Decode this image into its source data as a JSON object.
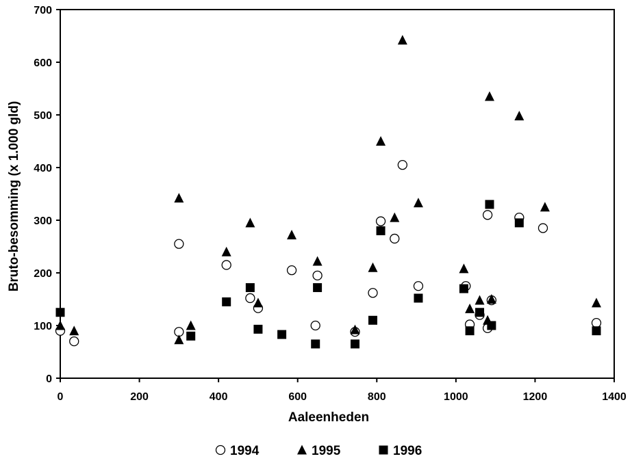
{
  "chart_data": {
    "type": "scatter",
    "title": "",
    "xlabel": "Aaleenheden",
    "ylabel": "Bruto-besomming (x 1.000 gld)",
    "xlim": [
      0,
      1400
    ],
    "ylim": [
      0,
      700
    ],
    "xticks": [
      "0",
      "200",
      "400",
      "600",
      "800",
      "1000",
      "1200",
      "1400"
    ],
    "yticks": [
      "0",
      "100",
      "200",
      "300",
      "400",
      "500",
      "600",
      "700"
    ],
    "grid": false,
    "legend_position": "bottom",
    "series": [
      {
        "name": "1994",
        "marker": "open-circle",
        "points": [
          [
            0,
            90
          ],
          [
            35,
            70
          ],
          [
            300,
            255
          ],
          [
            300,
            88
          ],
          [
            420,
            215
          ],
          [
            480,
            152
          ],
          [
            500,
            133
          ],
          [
            585,
            205
          ],
          [
            645,
            100
          ],
          [
            650,
            195
          ],
          [
            745,
            88
          ],
          [
            790,
            162
          ],
          [
            810,
            298
          ],
          [
            845,
            265
          ],
          [
            865,
            405
          ],
          [
            905,
            175
          ],
          [
            1025,
            175
          ],
          [
            1035,
            102
          ],
          [
            1060,
            120
          ],
          [
            1080,
            95
          ],
          [
            1080,
            310
          ],
          [
            1090,
            148
          ],
          [
            1160,
            305
          ],
          [
            1220,
            285
          ],
          [
            1355,
            105
          ]
        ]
      },
      {
        "name": "1995",
        "marker": "filled-triangle",
        "points": [
          [
            0,
            100
          ],
          [
            35,
            90
          ],
          [
            300,
            73
          ],
          [
            300,
            342
          ],
          [
            330,
            100
          ],
          [
            420,
            240
          ],
          [
            480,
            295
          ],
          [
            500,
            143
          ],
          [
            585,
            272
          ],
          [
            650,
            222
          ],
          [
            745,
            92
          ],
          [
            790,
            210
          ],
          [
            810,
            450
          ],
          [
            845,
            305
          ],
          [
            865,
            642
          ],
          [
            905,
            333
          ],
          [
            1020,
            208
          ],
          [
            1035,
            132
          ],
          [
            1060,
            148
          ],
          [
            1080,
            110
          ],
          [
            1085,
            535
          ],
          [
            1090,
            150
          ],
          [
            1160,
            498
          ],
          [
            1225,
            325
          ],
          [
            1355,
            143
          ]
        ]
      },
      {
        "name": "1996",
        "marker": "filled-square",
        "points": [
          [
            0,
            125
          ],
          [
            330,
            80
          ],
          [
            420,
            145
          ],
          [
            480,
            172
          ],
          [
            500,
            93
          ],
          [
            560,
            83
          ],
          [
            645,
            65
          ],
          [
            650,
            172
          ],
          [
            745,
            65
          ],
          [
            790,
            110
          ],
          [
            810,
            280
          ],
          [
            905,
            152
          ],
          [
            1020,
            170
          ],
          [
            1035,
            90
          ],
          [
            1060,
            125
          ],
          [
            1085,
            330
          ],
          [
            1090,
            100
          ],
          [
            1160,
            295
          ],
          [
            1355,
            90
          ]
        ]
      }
    ]
  }
}
